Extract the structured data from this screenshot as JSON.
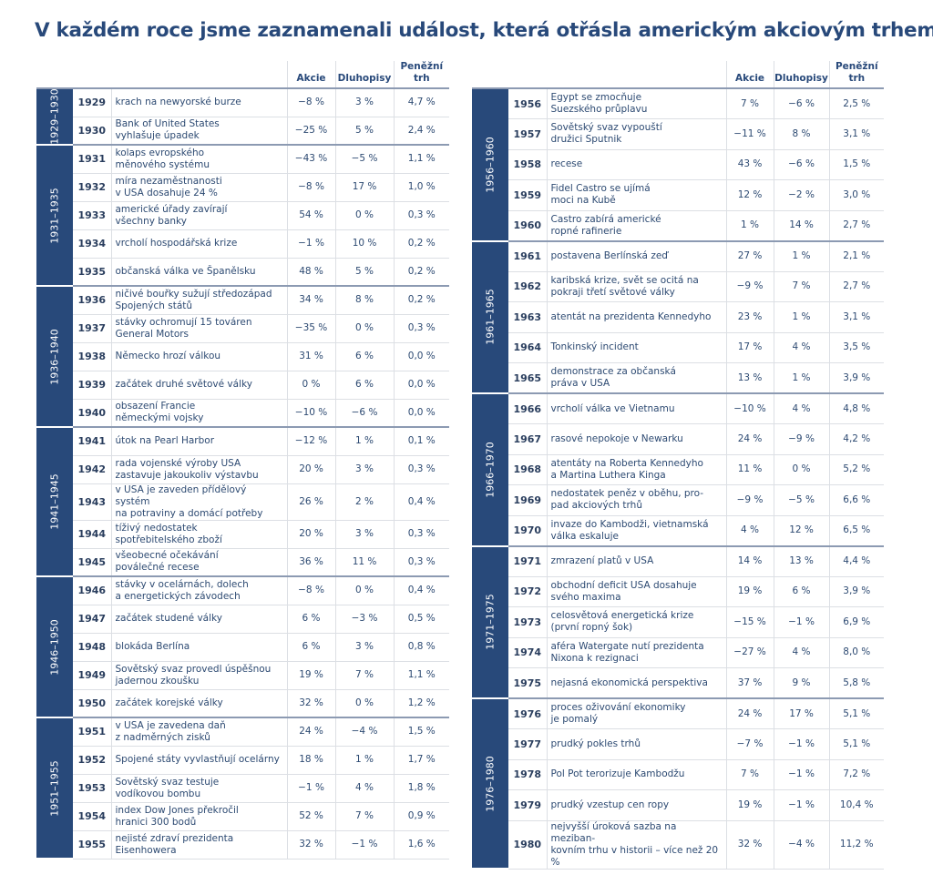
{
  "title": "V každém roce jsme zaznamenali událost, která otřásla americkým akciovým trhem...",
  "headers": {
    "stocks": "Akcie",
    "bonds": "Dluhopisy",
    "money": "Peněžní\ntrh"
  },
  "left": [
    {
      "period": "1929–1930",
      "rows": [
        [
          "1929",
          "krach na newyorské burze",
          "−8 %",
          "3 %",
          "4,7 %"
        ],
        [
          "1930",
          "Bank of United States\nvyhlašuje úpadek",
          "−25 %",
          "5 %",
          "2,4 %"
        ]
      ]
    },
    {
      "period": "1931–1935",
      "rows": [
        [
          "1931",
          "kolaps evropského\nměnového systému",
          "−43 %",
          "−5 %",
          "1,1 %"
        ],
        [
          "1932",
          "míra nezaměstnanosti\nv USA dosahuje 24 %",
          "−8 %",
          "17 %",
          "1,0 %"
        ],
        [
          "1933",
          "americké úřady zavírají\nvšechny banky",
          "54 %",
          "0 %",
          "0,3 %"
        ],
        [
          "1934",
          "vrcholí hospodářská krize",
          "−1 %",
          "10 %",
          "0,2 %"
        ],
        [
          "1935",
          "občanská válka ve Španělsku",
          "48 %",
          "5 %",
          "0,2 %"
        ]
      ]
    },
    {
      "period": "1936–1940",
      "rows": [
        [
          "1936",
          "ničivé bouřky sužují středozápad\nSpojených států",
          "34 %",
          "8 %",
          "0,2 %"
        ],
        [
          "1937",
          "stávky ochromují 15 továren\nGeneral Motors",
          "−35 %",
          "0 %",
          "0,3 %"
        ],
        [
          "1938",
          "Německo hrozí válkou",
          "31 %",
          "6 %",
          "0,0 %"
        ],
        [
          "1939",
          "začátek druhé světové války",
          "0 %",
          "6 %",
          "0,0 %"
        ],
        [
          "1940",
          "obsazení Francie\nněmeckými vojsky",
          "−10 %",
          "−6 %",
          "0,0 %"
        ]
      ]
    },
    {
      "period": "1941–1945",
      "rows": [
        [
          "1941",
          "útok na Pearl Harbor",
          "−12 %",
          "1 %",
          "0,1 %"
        ],
        [
          "1942",
          "rada vojenské výroby USA\nzastavuje jakoukoliv výstavbu",
          "20 %",
          "3 %",
          "0,3 %"
        ],
        [
          "1943",
          "v USA je zaveden přídělový systém\nna potraviny a domácí potřeby",
          "26 %",
          "2 %",
          "0,4 %"
        ],
        [
          "1944",
          "tíživý nedostatek\nspotřebitelského zboží",
          "20 %",
          "3 %",
          "0,3 %"
        ],
        [
          "1945",
          "všeobecné očekávání\npoválečné recese",
          "36 %",
          "11 %",
          "0,3 %"
        ]
      ]
    },
    {
      "period": "1946–1950",
      "rows": [
        [
          "1946",
          "stávky v ocelárnách, dolech\na energetických závodech",
          "−8 %",
          "0 %",
          "0,4 %"
        ],
        [
          "1947",
          "začátek studené války",
          "6 %",
          "−3 %",
          "0,5 %"
        ],
        [
          "1948",
          "blokáda Berlína",
          "6 %",
          "3 %",
          "0,8 %"
        ],
        [
          "1949",
          "Sovětský svaz provedl úspěšnou\njadernou zkoušku",
          "19 %",
          "7 %",
          "1,1 %"
        ],
        [
          "1950",
          "začátek korejské války",
          "32 %",
          "0 %",
          "1,2 %"
        ]
      ]
    },
    {
      "period": "1951–1955",
      "rows": [
        [
          "1951",
          "v USA je zavedena daň\nz nadměrných zisků",
          "24 %",
          "−4 %",
          "1,5 %"
        ],
        [
          "1952",
          "Spojené státy vyvlastňují ocelárny",
          "18 %",
          "1 %",
          "1,7 %"
        ],
        [
          "1953",
          "Sovětský svaz testuje\nvodíkovou bombu",
          "−1 %",
          "4 %",
          "1,8 %"
        ],
        [
          "1954",
          "index Dow Jones překročil\nhranici 300 bodů",
          "52 %",
          "7 %",
          "0,9 %"
        ],
        [
          "1955",
          "nejisté zdraví prezidenta\nEisenhowera",
          "32 %",
          "−1 %",
          "1,6 %"
        ]
      ]
    }
  ],
  "right": [
    {
      "period": "1956–1960",
      "rows": [
        [
          "1956",
          "Egypt se zmocňuje\nSuezského průplavu",
          "7 %",
          "−6 %",
          "2,5 %"
        ],
        [
          "1957",
          "Sovětský svaz vypouští\ndružici Sputnik",
          "−11 %",
          "8 %",
          "3,1 %"
        ],
        [
          "1958",
          "recese",
          "43 %",
          "−6 %",
          "1,5 %"
        ],
        [
          "1959",
          "Fidel Castro se ujímá\nmoci na Kubě",
          "12 %",
          "−2 %",
          "3,0 %"
        ],
        [
          "1960",
          "Castro zabírá americké\nropné rafinerie",
          "1 %",
          "14 %",
          "2,7 %"
        ]
      ]
    },
    {
      "period": "1961–1965",
      "rows": [
        [
          "1961",
          "postavena Berlínská zeď",
          "27 %",
          "1 %",
          "2,1 %"
        ],
        [
          "1962",
          "karibská krize, svět se ocitá na\npokraji třetí světové války",
          "−9 %",
          "7 %",
          "2,7 %"
        ],
        [
          "1963",
          "atentát na prezidenta Kennedyho",
          "23 %",
          "1 %",
          "3,1 %"
        ],
        [
          "1964",
          "Tonkinský incident",
          "17 %",
          "4 %",
          "3,5 %"
        ],
        [
          "1965",
          "demonstrace za občanská\npráva v USA",
          "13 %",
          "1 %",
          "3,9 %"
        ]
      ]
    },
    {
      "period": "1966–1970",
      "rows": [
        [
          "1966",
          "vrcholí válka ve Vietnamu",
          "−10 %",
          "4 %",
          "4,8 %"
        ],
        [
          "1967",
          "rasové nepokoje v Newarku",
          "24 %",
          "−9 %",
          "4,2 %"
        ],
        [
          "1968",
          "atentáty na Roberta Kennedyho\na Martina Luthera Kinga",
          "11 %",
          "0 %",
          "5,2 %"
        ],
        [
          "1969",
          "nedostatek peněz v oběhu, pro-\npad akciových trhů",
          "−9 %",
          "−5 %",
          "6,6 %"
        ],
        [
          "1970",
          "invaze do Kambodži, vietnamská\nválka eskaluje",
          "4 %",
          "12 %",
          "6,5 %"
        ]
      ]
    },
    {
      "period": "1971–1975",
      "rows": [
        [
          "1971",
          "zmrazení platů v USA",
          "14 %",
          "13 %",
          "4,4 %"
        ],
        [
          "1972",
          "obchodní deficit USA dosahuje\nsvého maxima",
          "19 %",
          "6 %",
          "3,9 %"
        ],
        [
          "1973",
          "celosvětová energetická krize\n(první ropný šok)",
          "−15 %",
          "−1 %",
          "6,9 %"
        ],
        [
          "1974",
          "aféra Watergate nutí prezidenta\nNixona k rezignaci",
          "−27 %",
          "4 %",
          "8,0 %"
        ],
        [
          "1975",
          "nejasná ekonomická perspektiva",
          "37 %",
          "9 %",
          "5,8 %"
        ]
      ]
    },
    {
      "period": "1976–1980",
      "rows": [
        [
          "1976",
          "proces oživování ekonomiky\nje pomalý",
          "24 %",
          "17 %",
          "5,1 %"
        ],
        [
          "1977",
          "prudký pokles trhů",
          "−7 %",
          "−1 %",
          "5,1 %"
        ],
        [
          "1978",
          "Pol Pot terorizuje Kambodžu",
          "7 %",
          "−1 %",
          "7,2 %"
        ],
        [
          "1979",
          "prudký vzestup cen ropy",
          "19 %",
          "−1 %",
          "10,4 %"
        ],
        [
          "1980",
          "nejvyšší úroková sazba na meziban-\nkovním trhu v historii – více než 20 %",
          "32 %",
          "−4 %",
          "11,2 %"
        ]
      ]
    }
  ]
}
